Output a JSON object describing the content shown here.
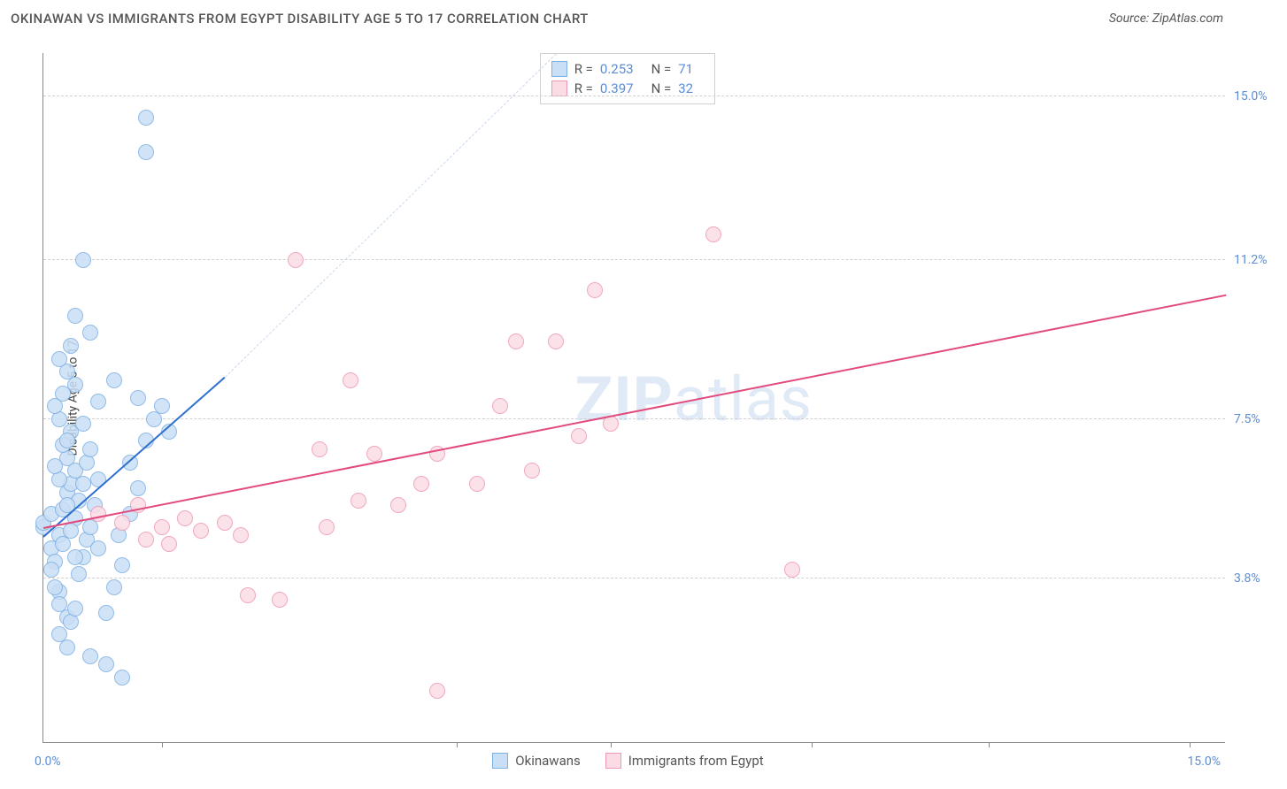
{
  "header": {
    "title": "OKINAWAN VS IMMIGRANTS FROM EGYPT DISABILITY AGE 5 TO 17 CORRELATION CHART",
    "source": "Source: ZipAtlas.com"
  },
  "chart": {
    "type": "scatter",
    "y_axis_title": "Disability Age 5 to 17",
    "xlim": [
      0,
      15
    ],
    "ylim": [
      0,
      16
    ],
    "x_axis_label_left": "0.0%",
    "x_axis_label_right": "15.0%",
    "x_tick_positions_pct": [
      10,
      35,
      48,
      65,
      80,
      97
    ],
    "y_gridlines": [
      {
        "value": 3.8,
        "label": "3.8%"
      },
      {
        "value": 7.5,
        "label": "7.5%"
      },
      {
        "value": 11.2,
        "label": "11.2%"
      },
      {
        "value": 15.0,
        "label": "15.0%"
      }
    ],
    "background_color": "#ffffff",
    "grid_color": "#d0d0d0",
    "point_radius": 9,
    "series": [
      {
        "name": "Okinawans",
        "fill": "#c9dff5",
        "stroke": "#7fb0e3",
        "trend_color": "#2f6fd0",
        "trend": {
          "x1": 0,
          "y1": 4.8,
          "x2": 2.3,
          "y2": 8.5,
          "dashed_extend_to_x": 6.5,
          "dashed_extend_to_y": 16
        },
        "points": [
          [
            0.0,
            5.0
          ],
          [
            0.0,
            5.1
          ],
          [
            0.1,
            5.3
          ],
          [
            0.1,
            4.5
          ],
          [
            0.15,
            4.2
          ],
          [
            0.2,
            3.5
          ],
          [
            0.2,
            3.2
          ],
          [
            0.3,
            2.9
          ],
          [
            0.2,
            4.8
          ],
          [
            0.25,
            5.4
          ],
          [
            0.3,
            5.8
          ],
          [
            0.35,
            6.0
          ],
          [
            0.4,
            6.3
          ],
          [
            0.3,
            6.6
          ],
          [
            0.25,
            6.9
          ],
          [
            0.35,
            7.2
          ],
          [
            0.2,
            7.5
          ],
          [
            0.15,
            7.8
          ],
          [
            0.25,
            8.1
          ],
          [
            0.4,
            8.3
          ],
          [
            0.3,
            8.6
          ],
          [
            0.2,
            8.9
          ],
          [
            0.35,
            9.2
          ],
          [
            0.1,
            4.0
          ],
          [
            0.15,
            3.6
          ],
          [
            0.2,
            2.5
          ],
          [
            0.3,
            2.2
          ],
          [
            0.35,
            2.8
          ],
          [
            0.4,
            3.1
          ],
          [
            0.45,
            3.9
          ],
          [
            0.5,
            4.3
          ],
          [
            0.55,
            4.7
          ],
          [
            0.6,
            5.0
          ],
          [
            0.65,
            5.5
          ],
          [
            0.7,
            6.1
          ],
          [
            0.55,
            6.5
          ],
          [
            0.6,
            6.8
          ],
          [
            0.8,
            3.0
          ],
          [
            0.9,
            3.6
          ],
          [
            1.0,
            4.1
          ],
          [
            0.95,
            4.8
          ],
          [
            1.1,
            5.3
          ],
          [
            1.2,
            5.9
          ],
          [
            1.1,
            6.5
          ],
          [
            1.3,
            7.0
          ],
          [
            1.4,
            7.5
          ],
          [
            1.2,
            8.0
          ],
          [
            0.5,
            11.2
          ],
          [
            0.6,
            9.5
          ],
          [
            0.4,
            9.9
          ],
          [
            1.3,
            13.7
          ],
          [
            1.3,
            14.5
          ],
          [
            1.5,
            7.8
          ],
          [
            1.6,
            7.2
          ],
          [
            1.0,
            1.5
          ],
          [
            0.8,
            1.8
          ],
          [
            0.6,
            2.0
          ],
          [
            0.4,
            5.2
          ],
          [
            0.45,
            5.6
          ],
          [
            0.5,
            6.0
          ],
          [
            0.3,
            5.5
          ],
          [
            0.35,
            4.9
          ],
          [
            0.4,
            4.3
          ],
          [
            0.25,
            4.6
          ],
          [
            0.2,
            6.1
          ],
          [
            0.15,
            6.4
          ],
          [
            0.3,
            7.0
          ],
          [
            0.5,
            7.4
          ],
          [
            0.7,
            7.9
          ],
          [
            0.9,
            8.4
          ],
          [
            0.7,
            4.5
          ]
        ]
      },
      {
        "name": "Immigrants from Egypt",
        "fill": "#fbdce5",
        "stroke": "#ef9ab5",
        "trend_color": "#e24a7d",
        "trend": {
          "x1": 0,
          "y1": 5.0,
          "x2": 15,
          "y2": 10.4
        },
        "points": [
          [
            0.7,
            5.3
          ],
          [
            1.0,
            5.1
          ],
          [
            1.2,
            5.5
          ],
          [
            1.5,
            5.0
          ],
          [
            1.8,
            5.2
          ],
          [
            2.0,
            4.9
          ],
          [
            2.3,
            5.1
          ],
          [
            2.5,
            4.8
          ],
          [
            2.6,
            3.4
          ],
          [
            3.0,
            3.3
          ],
          [
            3.2,
            11.2
          ],
          [
            3.6,
            5.0
          ],
          [
            3.9,
            8.4
          ],
          [
            4.0,
            5.6
          ],
          [
            4.2,
            6.7
          ],
          [
            4.5,
            5.5
          ],
          [
            4.8,
            6.0
          ],
          [
            5.0,
            1.2
          ],
          [
            5.0,
            6.7
          ],
          [
            5.5,
            6.0
          ],
          [
            5.8,
            7.8
          ],
          [
            6.0,
            9.3
          ],
          [
            6.2,
            6.3
          ],
          [
            6.5,
            9.3
          ],
          [
            6.8,
            7.1
          ],
          [
            7.0,
            10.5
          ],
          [
            7.2,
            7.4
          ],
          [
            8.5,
            11.8
          ],
          [
            9.5,
            4.0
          ],
          [
            1.3,
            4.7
          ],
          [
            1.6,
            4.6
          ],
          [
            3.5,
            6.8
          ]
        ]
      }
    ],
    "stats_box": [
      {
        "series_idx": 0,
        "R": "0.253",
        "N": "71"
      },
      {
        "series_idx": 1,
        "R": "0.397",
        "N": "32"
      }
    ],
    "legend": [
      {
        "series_idx": 0,
        "label": "Okinawans"
      },
      {
        "series_idx": 1,
        "label": "Immigrants from Egypt"
      }
    ],
    "watermark": {
      "bold": "ZIP",
      "light": "atlas"
    }
  }
}
